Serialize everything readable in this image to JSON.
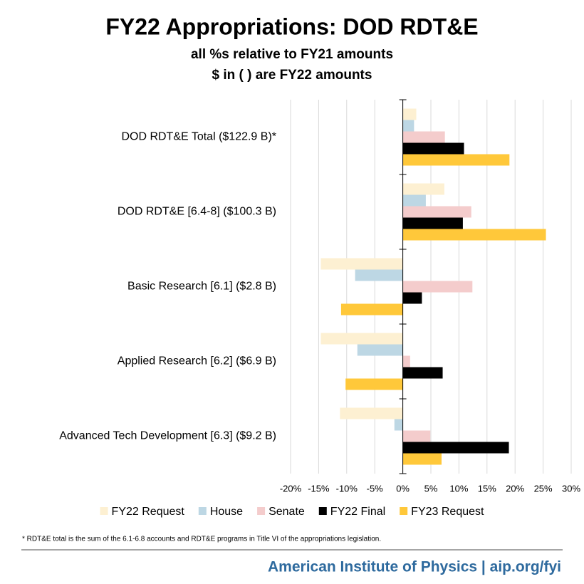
{
  "chart_data": {
    "type": "hbar",
    "title": "FY22 Appropriations: DOD RDT&E",
    "subtitles": [
      "all %s relative to FY21 amounts",
      "$ in ( ) are FY22 amounts"
    ],
    "categories": [
      "DOD RDT&E Total ($122.9 B)*",
      "DOD RDT&E [6.4-8] ($100.3 B)",
      "Basic Research [6.1] ($2.8 B)",
      "Applied Research [6.2] ($6.9 B)",
      "Advanced Tech Development [6.3] ($9.2 B)"
    ],
    "series": [
      {
        "name": "FY22 Request",
        "color": "#fdf0d2",
        "values": [
          2.4,
          7.4,
          -14.6,
          -14.6,
          -11.2
        ]
      },
      {
        "name": "House",
        "color": "#bdd7e4",
        "values": [
          2.0,
          4.1,
          -8.5,
          -8.1,
          -1.5
        ]
      },
      {
        "name": "Senate",
        "color": "#f4cccc",
        "values": [
          7.5,
          12.2,
          12.4,
          1.3,
          4.9
        ]
      },
      {
        "name": "FY22 Final",
        "color": "#000000",
        "values": [
          10.9,
          10.7,
          3.4,
          7.1,
          18.9
        ]
      },
      {
        "name": "FY23 Request",
        "color": "#ffc83a",
        "values": [
          19.0,
          25.5,
          -11.0,
          -10.2,
          6.9
        ]
      }
    ],
    "xlim": [
      -20,
      30
    ],
    "xticks": [
      {
        "value": -20,
        "label": "-20%"
      },
      {
        "value": -15,
        "label": "-15%"
      },
      {
        "value": -10,
        "label": "-10%"
      },
      {
        "value": -5,
        "label": "-5%"
      },
      {
        "value": 0,
        "label": "0%"
      },
      {
        "value": 5,
        "label": "5%"
      },
      {
        "value": 10,
        "label": "10%"
      },
      {
        "value": 15,
        "label": "15%"
      },
      {
        "value": 20,
        "label": "20%"
      },
      {
        "value": 25,
        "label": "25%"
      },
      {
        "value": 30,
        "label": "30%"
      }
    ],
    "grid": true,
    "legend": "bottom",
    "note": "* RDT&E total is the sum of the 6.1-6.8 accounts and RDT&E programs in Title VI of the appropriations legislation.",
    "source": "American Institute of Physics | aip.org/fyi"
  }
}
